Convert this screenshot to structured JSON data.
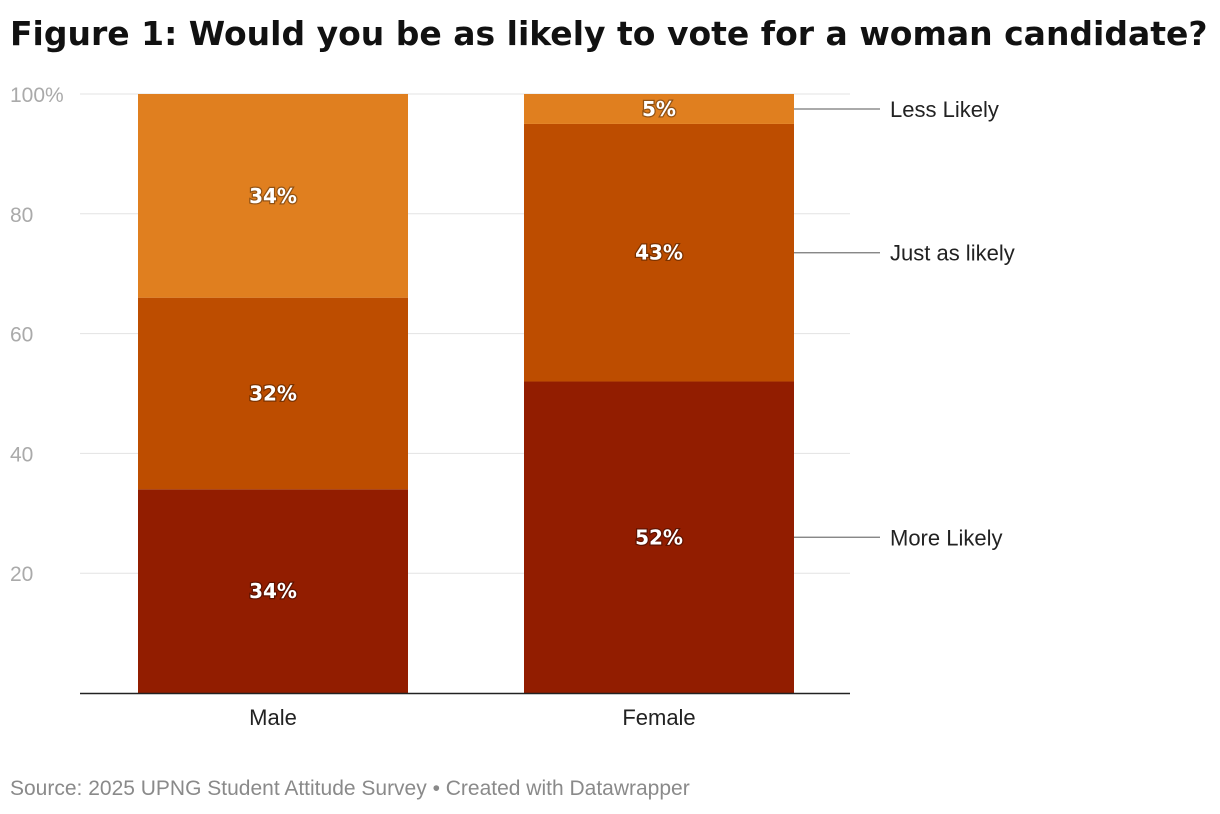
{
  "chart_data": {
    "type": "bar",
    "stacked": true,
    "title": "Figure 1: Would you be as likely to vote for a woman candidate?",
    "categories": [
      "Male",
      "Female"
    ],
    "series": [
      {
        "name": "More Likely",
        "values": [
          34,
          52
        ],
        "color": "#921d00"
      },
      {
        "name": "Just as likely",
        "values": [
          32,
          43
        ],
        "color": "#bd4d00"
      },
      {
        "name": "Less Likely",
        "values": [
          34,
          5
        ],
        "color": "#e07f1f"
      }
    ],
    "ylim": [
      0,
      100
    ],
    "yticks": [
      20,
      40,
      60,
      80,
      100
    ],
    "ytick_labels": [
      "20",
      "40",
      "60",
      "80",
      "100%"
    ],
    "xlabel": "",
    "ylabel": "",
    "legend": "right, inline labels",
    "source": "Source: 2025 UPNG Student Attitude Survey • Created with Datawrapper"
  }
}
